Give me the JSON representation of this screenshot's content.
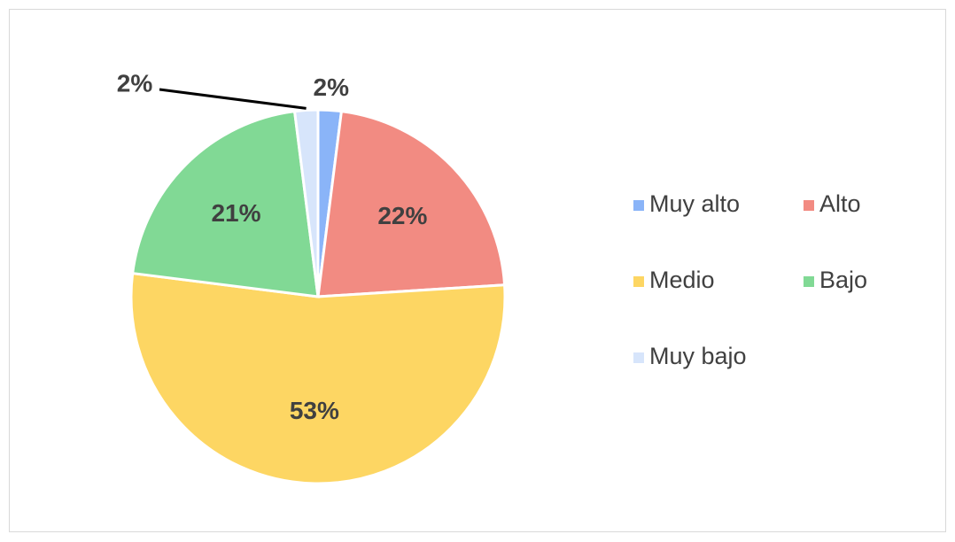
{
  "chart_data": {
    "type": "pie",
    "categories": [
      "Muy alto",
      "Alto",
      "Medio",
      "Bajo",
      "Muy bajo"
    ],
    "values": [
      2,
      22,
      53,
      21,
      2
    ],
    "value_labels": [
      "2%",
      "22%",
      "53%",
      "21%",
      "2%"
    ],
    "colors": [
      "#8ab4f8",
      "#f28b82",
      "#fdd663",
      "#81d995",
      "#d7e5fb"
    ],
    "legend": "right"
  }
}
